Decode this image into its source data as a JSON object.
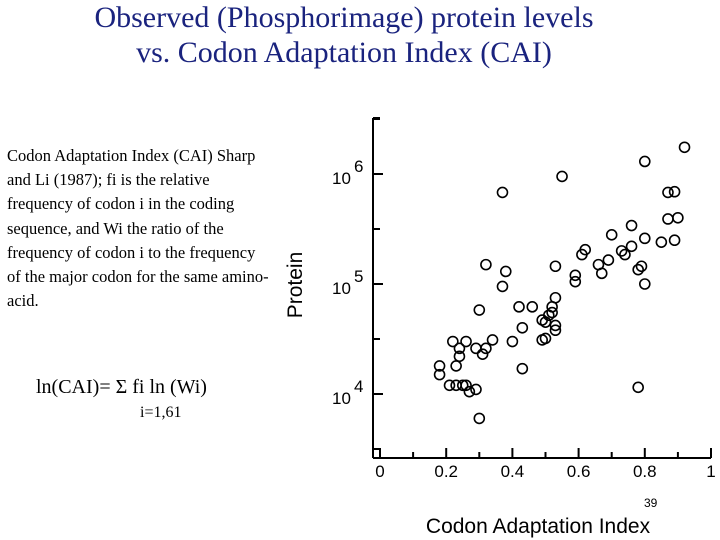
{
  "slide": {
    "title_line1": "Observed (Phosphorimage) protein levels",
    "title_line2": "vs. Codon Adaptation Index (CAI)",
    "body_text": "Codon Adaptation Index (CAI) Sharp and Li (1987); fi is the relative frequency of codon i in the coding sequence, and Wi the ratio of the frequency of codon i to the frequency of the major codon for the same amino-acid.",
    "formula": "ln(CAI)= Σ fi ln (Wi)",
    "formula_subscript": "i=1,61",
    "page_number": "39"
  },
  "colors": {
    "title": "#1a237e",
    "marker": "#000000"
  },
  "chart_data": {
    "type": "scatter",
    "xlabel": "Codon Adaptation Index",
    "ylabel": "Protein",
    "x_ticks": [
      "0",
      "0.2",
      "0.4",
      "0.6",
      "0.8",
      "1"
    ],
    "y_ticks": [
      {
        "base": "10",
        "exp": "4"
      },
      {
        "base": "10",
        "exp": "5"
      },
      {
        "base": "10",
        "exp": "6"
      }
    ],
    "xlim": [
      0,
      1
    ],
    "ylog": true,
    "ylim": [
      3000,
      3000000
    ],
    "marker": "open-circle",
    "grid": false,
    "points": [
      {
        "x": 0.18,
        "y": 15000
      },
      {
        "x": 0.18,
        "y": 18000
      },
      {
        "x": 0.21,
        "y": 12000
      },
      {
        "x": 0.22,
        "y": 30000
      },
      {
        "x": 0.23,
        "y": 18000
      },
      {
        "x": 0.23,
        "y": 12000
      },
      {
        "x": 0.24,
        "y": 22000
      },
      {
        "x": 0.24,
        "y": 26000
      },
      {
        "x": 0.26,
        "y": 30000
      },
      {
        "x": 0.25,
        "y": 12000
      },
      {
        "x": 0.26,
        "y": 12000
      },
      {
        "x": 0.27,
        "y": 10500
      },
      {
        "x": 0.29,
        "y": 11000
      },
      {
        "x": 0.3,
        "y": 6000
      },
      {
        "x": 0.29,
        "y": 26000
      },
      {
        "x": 0.31,
        "y": 23000
      },
      {
        "x": 0.32,
        "y": 26000
      },
      {
        "x": 0.34,
        "y": 31000
      },
      {
        "x": 0.3,
        "y": 58000
      },
      {
        "x": 0.32,
        "y": 150000
      },
      {
        "x": 0.37,
        "y": 680000
      },
      {
        "x": 0.37,
        "y": 95000
      },
      {
        "x": 0.38,
        "y": 130000
      },
      {
        "x": 0.4,
        "y": 30000
      },
      {
        "x": 0.42,
        "y": 62000
      },
      {
        "x": 0.43,
        "y": 40000
      },
      {
        "x": 0.43,
        "y": 17000
      },
      {
        "x": 0.46,
        "y": 62000
      },
      {
        "x": 0.49,
        "y": 47000
      },
      {
        "x": 0.49,
        "y": 31000
      },
      {
        "x": 0.5,
        "y": 45000
      },
      {
        "x": 0.5,
        "y": 32000
      },
      {
        "x": 0.51,
        "y": 52000
      },
      {
        "x": 0.52,
        "y": 62000
      },
      {
        "x": 0.52,
        "y": 55000
      },
      {
        "x": 0.53,
        "y": 42000
      },
      {
        "x": 0.53,
        "y": 38000
      },
      {
        "x": 0.53,
        "y": 75000
      },
      {
        "x": 0.53,
        "y": 145000
      },
      {
        "x": 0.55,
        "y": 950000
      },
      {
        "x": 0.59,
        "y": 120000
      },
      {
        "x": 0.59,
        "y": 105000
      },
      {
        "x": 0.61,
        "y": 185000
      },
      {
        "x": 0.62,
        "y": 205000
      },
      {
        "x": 0.66,
        "y": 150000
      },
      {
        "x": 0.67,
        "y": 125000
      },
      {
        "x": 0.69,
        "y": 165000
      },
      {
        "x": 0.7,
        "y": 280000
      },
      {
        "x": 0.73,
        "y": 200000
      },
      {
        "x": 0.74,
        "y": 185000
      },
      {
        "x": 0.76,
        "y": 340000
      },
      {
        "x": 0.76,
        "y": 220000
      },
      {
        "x": 0.78,
        "y": 135000
      },
      {
        "x": 0.78,
        "y": 11500
      },
      {
        "x": 0.79,
        "y": 145000
      },
      {
        "x": 0.8,
        "y": 100000
      },
      {
        "x": 0.8,
        "y": 260000
      },
      {
        "x": 0.8,
        "y": 1300000
      },
      {
        "x": 0.85,
        "y": 240000
      },
      {
        "x": 0.87,
        "y": 680000
      },
      {
        "x": 0.87,
        "y": 390000
      },
      {
        "x": 0.89,
        "y": 690000
      },
      {
        "x": 0.89,
        "y": 250000
      },
      {
        "x": 0.9,
        "y": 400000
      },
      {
        "x": 0.92,
        "y": 1750000
      }
    ]
  }
}
